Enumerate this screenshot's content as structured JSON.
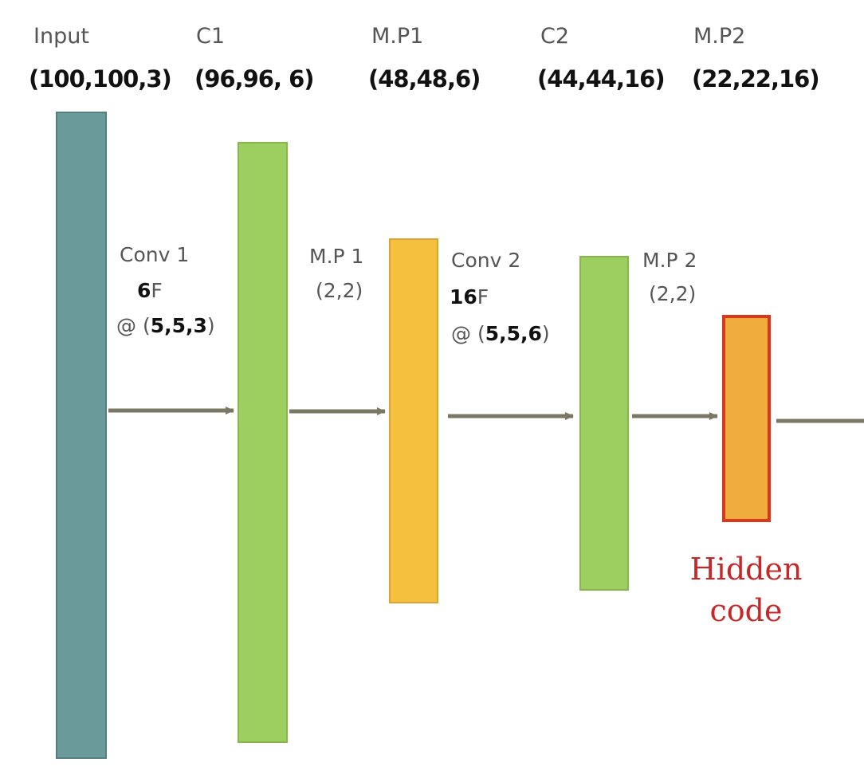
{
  "headers": [
    {
      "name": "Input",
      "shape": "(100,100,3)"
    },
    {
      "name": "C1",
      "shape": "(96,96, 6)"
    },
    {
      "name": "M.P1",
      "shape": "(48,48,6)"
    },
    {
      "name": "C2",
      "shape": "(44,44,16)"
    },
    {
      "name": "M.P2",
      "shape": "(22,22,16)"
    }
  ],
  "operations": {
    "conv1": {
      "title": "Conv 1",
      "filters_num": "6",
      "filters_unit": "F",
      "kernel_prefix": "@ (",
      "kernel_values": "5,5,3",
      "kernel_suffix": ")"
    },
    "mp1": {
      "title": "M.P 1",
      "size": "(2,2)"
    },
    "conv2": {
      "title": "Conv 2",
      "filters_num": "16",
      "filters_unit": "F",
      "kernel_prefix": "@ (",
      "kernel_values": "5,5,6",
      "kernel_suffix": ")"
    },
    "mp2": {
      "title": "M.P 2",
      "size": "(2,2)"
    }
  },
  "hidden": {
    "line1": "Hidden",
    "line2": "code"
  },
  "colors": {
    "input_block": "#6a9b9a",
    "conv_block": "#9dcf60",
    "pool_block": "#f5c03e",
    "hidden_block": "#f1ad3c",
    "hidden_border": "#d8391e",
    "arrow": "#7a7864",
    "hidden_text": "#c62828"
  }
}
